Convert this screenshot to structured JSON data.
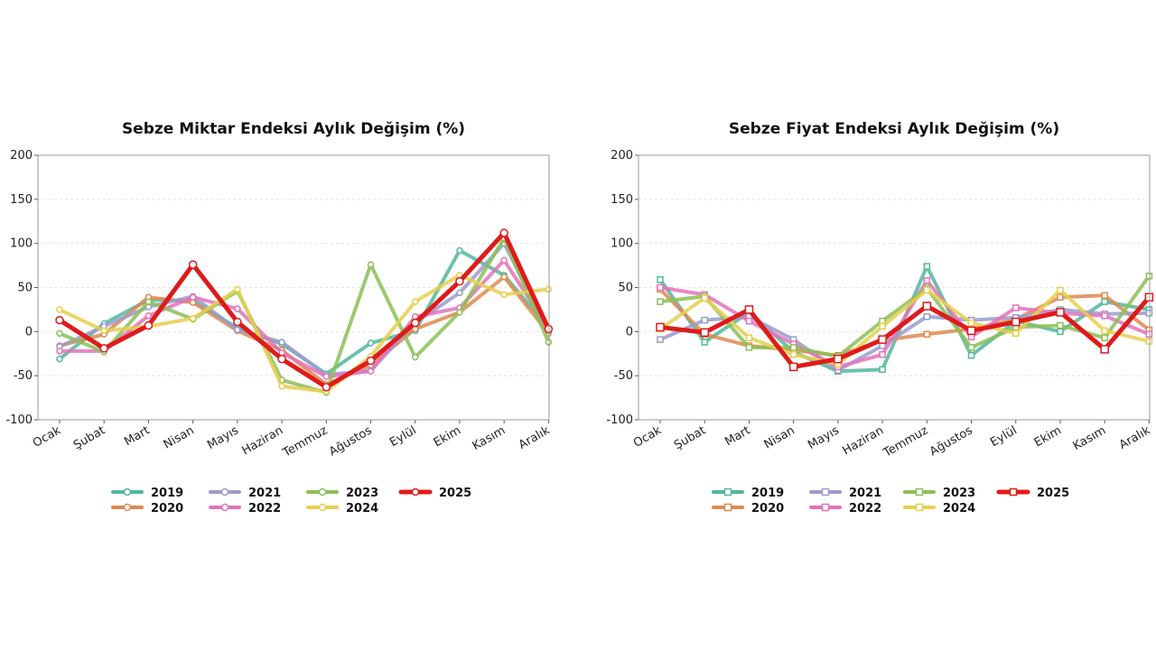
{
  "chart_data": [
    {
      "id": "miktar",
      "type": "line",
      "title": "Sebze Miktar Endeksi Aylık Değişim (%)",
      "xlabel": "",
      "ylabel": "",
      "ylim": [
        -100,
        200
      ],
      "yticks": [
        -100,
        -50,
        0,
        50,
        100,
        150,
        200
      ],
      "grid": true,
      "legend_position": "bottom",
      "categories": [
        "Ocak",
        "Şubat",
        "Mart",
        "Nisan",
        "Mayıs",
        "Haziran",
        "Temmuz",
        "Ağustos",
        "Eylül",
        "Ekim",
        "Kasım",
        "Aralık"
      ],
      "series": [
        {
          "name": "2019",
          "color": "#52b79c",
          "values": [
            -31,
            9,
            36,
            35,
            4,
            -14,
            -48,
            -13,
            1,
            92,
            64,
            4
          ]
        },
        {
          "name": "2020",
          "color": "#e0884f",
          "values": [
            -16,
            -3,
            39,
            33,
            1,
            -21,
            -60,
            -38,
            3,
            22,
            62,
            -2
          ]
        },
        {
          "name": "2021",
          "color": "#9a9ccc",
          "values": [
            -17,
            6,
            28,
            40,
            2,
            -12,
            -49,
            -44,
            10,
            44,
            100,
            1
          ]
        },
        {
          "name": "2022",
          "color": "#e472b8",
          "values": [
            -22,
            -22,
            18,
            39,
            26,
            -24,
            -51,
            -45,
            17,
            27,
            81,
            3
          ]
        },
        {
          "name": "2023",
          "color": "#8bbf57",
          "values": [
            -2,
            -23,
            34,
            14,
            46,
            -55,
            -69,
            76,
            -29,
            22,
            106,
            -12
          ]
        },
        {
          "name": "2024",
          "color": "#e6cf4e",
          "values": [
            25,
            1,
            6,
            15,
            48,
            -62,
            -68,
            -28,
            34,
            64,
            42,
            48
          ]
        },
        {
          "name": "2025",
          "color": "#e01a1a",
          "values": [
            13,
            -19,
            7,
            76,
            11,
            -31,
            -63,
            -33,
            10,
            57,
            112,
            3
          ]
        }
      ]
    },
    {
      "id": "fiyat",
      "type": "line",
      "title": "Sebze Fiyat Endeksi Aylık Değişim (%)",
      "xlabel": "",
      "ylabel": "",
      "ylim": [
        -100,
        200
      ],
      "yticks": [
        -100,
        -50,
        0,
        50,
        100,
        150,
        200
      ],
      "grid": true,
      "legend_position": "bottom",
      "categories": [
        "Ocak",
        "Şubat",
        "Mart",
        "Nisan",
        "Mayıs",
        "Haziran",
        "Temmuz",
        "Ağustos",
        "Eylül",
        "Ekim",
        "Kasım",
        "Aralık"
      ],
      "series": [
        {
          "name": "2019",
          "color": "#52b79c",
          "values": [
            59,
            -12,
            22,
            -23,
            -45,
            -43,
            74,
            -27,
            12,
            0,
            34,
            25
          ]
        },
        {
          "name": "2020",
          "color": "#e0884f",
          "values": [
            48,
            -3,
            -16,
            -21,
            -27,
            -10,
            -3,
            3,
            14,
            39,
            41,
            2
          ]
        },
        {
          "name": "2021",
          "color": "#9a9ccc",
          "values": [
            -9,
            13,
            17,
            -9,
            -44,
            -16,
            17,
            13,
            16,
            25,
            20,
            21
          ]
        },
        {
          "name": "2022",
          "color": "#e472b8",
          "values": [
            50,
            42,
            12,
            -14,
            -40,
            -26,
            58,
            -6,
            27,
            21,
            18,
            -3
          ]
        },
        {
          "name": "2023",
          "color": "#8bbf57",
          "values": [
            34,
            40,
            -18,
            -18,
            -28,
            12,
            49,
            -18,
            5,
            7,
            -7,
            63
          ]
        },
        {
          "name": "2024",
          "color": "#e6cf4e",
          "values": [
            3,
            38,
            -7,
            -26,
            -37,
            6,
            47,
            10,
            -2,
            47,
            1,
            -11
          ]
        },
        {
          "name": "2025",
          "color": "#e01a1a",
          "values": [
            5,
            -1,
            25,
            -40,
            -31,
            -9,
            29,
            1,
            11,
            22,
            -20,
            39
          ]
        }
      ]
    }
  ]
}
